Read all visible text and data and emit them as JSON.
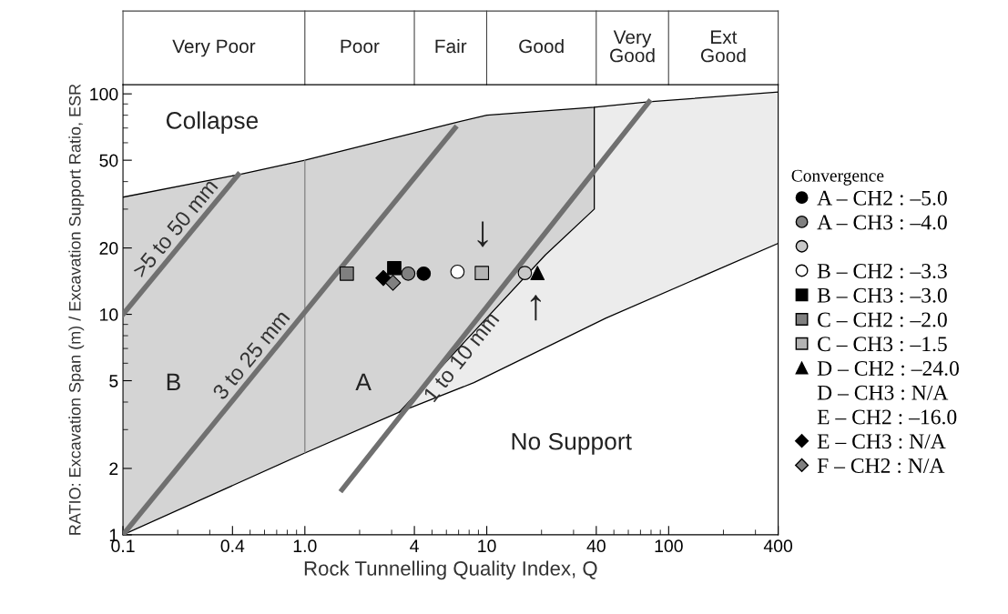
{
  "chart_data": {
    "type": "scatter",
    "xlabel": "Rock Tunnelling Quality Index, Q",
    "ylabel": "RATIO: Excavation Span (m) / Excavation Support Ratio, ESR",
    "legend_title": "Convergence",
    "log": "xy",
    "xlim": [
      0.1,
      400
    ],
    "xticks": [
      0.1,
      0.4,
      {
        "value": 1,
        "label": "1.0"
      },
      4,
      10,
      40,
      100,
      400
    ],
    "ylim": [
      1,
      110
    ],
    "yticks": [
      1,
      2,
      5,
      10,
      20,
      50,
      100
    ],
    "grid": false,
    "legend": "right",
    "annotations": [
      "Collapse",
      "B",
      "A",
      "No Support",
      "↓",
      "↑",
      "Very Poor",
      "Poor",
      "Fair",
      "Good",
      "Very\nGood",
      "Ext\nGood"
    ],
    "series": [
      {
        "type": "line",
        "color": "#000000",
        "x": [
          0.1,
          0.43,
          1,
          6.7,
          10,
          39,
          78,
          400
        ],
        "values": [
          34,
          43,
          50,
          74,
          80,
          87,
          92,
          102
        ]
      },
      {
        "type": "line",
        "color": "#000000",
        "x": [
          0.1,
          1,
          3.3,
          8.5,
          45,
          400
        ],
        "values": [
          1,
          2.35,
          3.6,
          4.9,
          9.6,
          21
        ]
      },
      {
        "type": "line",
        "color": "#000000",
        "x": [
          3.3,
          21,
          39,
          39
        ],
        "values": [
          3.6,
          18.6,
          30,
          87
        ]
      },
      {
        "type": "line",
        "color": "#808080",
        "x": [
          1,
          1
        ],
        "values": [
          2.35,
          50
        ]
      },
      {
        "type": "line",
        "name": ">5 to 50 mm",
        "color": "#707070",
        "x": [
          0.1,
          0.43
        ],
        "values": [
          10,
          43
        ]
      },
      {
        "type": "line",
        "name": "3 to 25 mm",
        "color": "#707070",
        "x": [
          0.1,
          6.7
        ],
        "values": [
          1,
          70
        ]
      },
      {
        "type": "line",
        "name": "1 to 10 mm",
        "color": "#707070",
        "x": [
          1.6,
          78
        ],
        "values": [
          1.6,
          92
        ]
      },
      {
        "name": "A – CH2 : –5.0",
        "marker": "circle",
        "color": "#000000",
        "x": [
          4.5
        ],
        "values": [
          15.3
        ]
      },
      {
        "name": "A – CH3 : –4.0",
        "marker": "circle",
        "color": "#808080",
        "x": [
          3.7
        ],
        "values": [
          15.3
        ]
      },
      {
        "marker": "circle",
        "color": "#c8c8c8",
        "x": [
          16.2
        ],
        "values": [
          15.4
        ]
      },
      {
        "name": "B – CH2 : –3.3",
        "marker": "circle",
        "color": "#ffffff",
        "x": [
          6.9
        ],
        "values": [
          15.6
        ]
      },
      {
        "name": "B – CH3 : –3.0",
        "marker": "square",
        "color": "#000000",
        "x": [
          3.1
        ],
        "values": [
          16.2
        ]
      },
      {
        "name": "C – CH2 : –2.0",
        "marker": "square",
        "color": "#808080",
        "x": [
          1.7
        ],
        "values": [
          15.3
        ]
      },
      {
        "name": "C – CH3 : –1.5",
        "marker": "square",
        "color": "#b4b4b4",
        "x": [
          9.4
        ],
        "values": [
          15.4
        ]
      },
      {
        "name": "D – CH2 : –24.0",
        "marker": "triangle",
        "color": "#000000",
        "x": [
          19
        ],
        "values": [
          15.4
        ]
      },
      {
        "name": "D – CH3 : N/A",
        "marker": "none"
      },
      {
        "name": "E – CH2 : –16.0",
        "marker": "none"
      },
      {
        "name": "E – CH3 : N/A",
        "marker": "diamond",
        "color": "#000000",
        "x": [
          2.7
        ],
        "values": [
          14.6
        ]
      },
      {
        "name": "F – CH2 : N/A",
        "marker": "diamond",
        "color": "#808080",
        "x": [
          3.05
        ],
        "values": [
          13.9
        ]
      }
    ]
  }
}
